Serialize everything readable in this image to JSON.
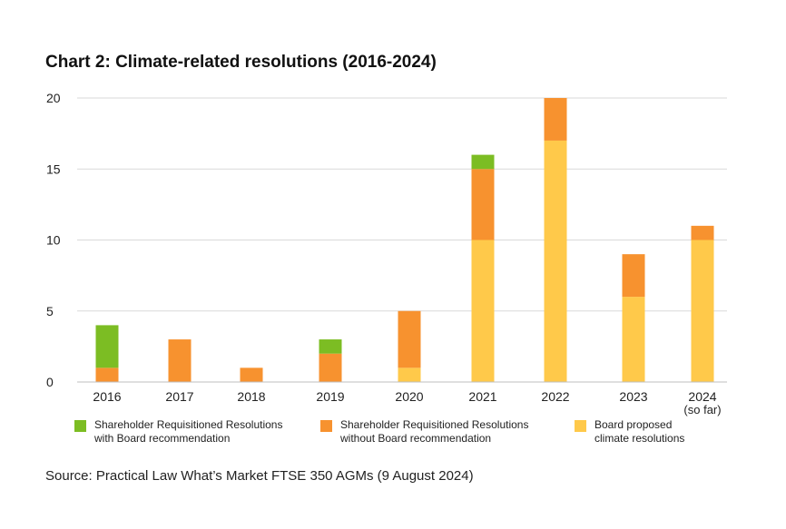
{
  "title": "Chart 2: Climate-related resolutions (2016-2024)",
  "source": "Source: Practical Law What’s Market FTSE 350 AGMs (9 August 2024)",
  "colors": {
    "shareholder_with": "#7cbd23",
    "shareholder_without": "#f7922f",
    "board": "#ffc94a",
    "grid": "#d9d9d9"
  },
  "chart_data": {
    "type": "bar",
    "stacked": true,
    "title": "Chart 2: Climate-related resolutions (2016-2024)",
    "xlabel": "",
    "ylabel": "",
    "ylim": [
      0,
      20
    ],
    "yticks": [
      0,
      5,
      10,
      15,
      20
    ],
    "grid": true,
    "legend_position": "bottom",
    "categories": [
      [
        "2016"
      ],
      [
        "2017"
      ],
      [
        "2018"
      ],
      [
        "2019"
      ],
      [
        "2020"
      ],
      [
        "2021"
      ],
      [
        "2022"
      ],
      [
        "2023"
      ],
      [
        "2024",
        "(so far)"
      ]
    ],
    "series": [
      {
        "name": "Board proposed climate resolutions",
        "legend_lines": [
          "Board proposed",
          "climate resolutions"
        ],
        "color_key": "board",
        "values": [
          0,
          0,
          0,
          0,
          1,
          10,
          17,
          6,
          10
        ]
      },
      {
        "name": "Shareholder Requisitioned Resolutions without Board recommendation",
        "legend_lines": [
          "Shareholder Requisitioned Resolutions",
          "without Board recommendation"
        ],
        "color_key": "shareholder_without",
        "values": [
          1,
          3,
          1,
          2,
          4,
          5,
          3,
          3,
          1
        ]
      },
      {
        "name": "Shareholder Requisitioned Resolutions with Board recommendation",
        "legend_lines": [
          "Shareholder Requisitioned Resolutions",
          "with Board recommendation"
        ],
        "color_key": "shareholder_with",
        "values": [
          3,
          0,
          0,
          1,
          0,
          1,
          0,
          0,
          0
        ]
      }
    ],
    "legend_order": [
      2,
      1,
      0
    ]
  }
}
